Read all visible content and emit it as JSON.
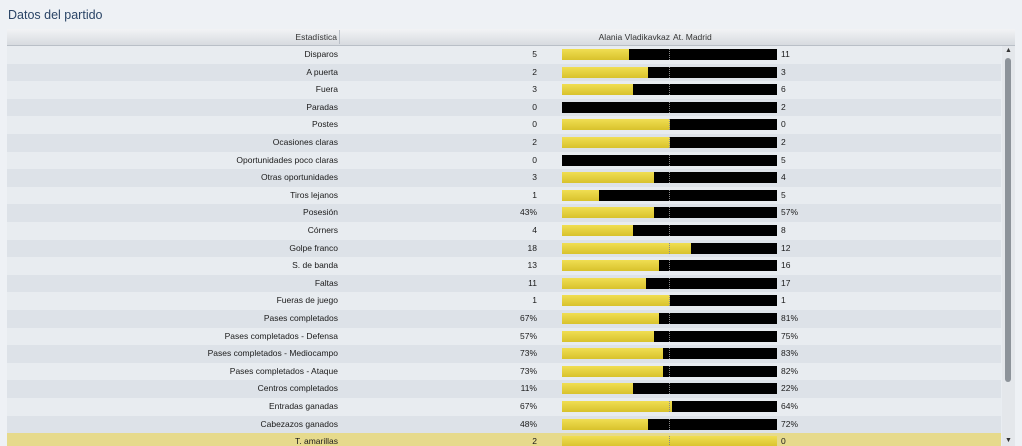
{
  "title": "Datos del partido",
  "header": {
    "stat_col": "Estadística",
    "home_team": "Alania Vladikavkaz",
    "away_team": "At. Madrid"
  },
  "colors": {
    "home_bar": "#e6d23d",
    "away_bar": "#000000",
    "highlight_row": "#e6da8c"
  },
  "stats": [
    {
      "label": "Disparos",
      "home": "5",
      "away": "11",
      "home_share": 0.31
    },
    {
      "label": "A puerta",
      "home": "2",
      "away": "3",
      "home_share": 0.4
    },
    {
      "label": "Fuera",
      "home": "3",
      "away": "6",
      "home_share": 0.33
    },
    {
      "label": "Paradas",
      "home": "0",
      "away": "2",
      "home_share": 0.0
    },
    {
      "label": "Postes",
      "home": "0",
      "away": "0",
      "home_share": 0.5
    },
    {
      "label": "Ocasiones claras",
      "home": "2",
      "away": "2",
      "home_share": 0.5
    },
    {
      "label": "Oportunidades poco claras",
      "home": "0",
      "away": "5",
      "home_share": 0.0
    },
    {
      "label": "Otras oportunidades",
      "home": "3",
      "away": "4",
      "home_share": 0.43
    },
    {
      "label": "Tiros lejanos",
      "home": "1",
      "away": "5",
      "home_share": 0.17
    },
    {
      "label": "Posesión",
      "home": "43%",
      "away": "57%",
      "home_share": 0.43
    },
    {
      "label": "Córners",
      "home": "4",
      "away": "8",
      "home_share": 0.33
    },
    {
      "label": "Golpe franco",
      "home": "18",
      "away": "12",
      "home_share": 0.6
    },
    {
      "label": "S. de banda",
      "home": "13",
      "away": "16",
      "home_share": 0.45
    },
    {
      "label": "Faltas",
      "home": "11",
      "away": "17",
      "home_share": 0.39
    },
    {
      "label": "Fueras de juego",
      "home": "1",
      "away": "1",
      "home_share": 0.5
    },
    {
      "label": "Pases completados",
      "home": "67%",
      "away": "81%",
      "home_share": 0.45
    },
    {
      "label": "Pases completados - Defensa",
      "home": "57%",
      "away": "75%",
      "home_share": 0.43
    },
    {
      "label": "Pases completados - Mediocampo",
      "home": "73%",
      "away": "83%",
      "home_share": 0.47
    },
    {
      "label": "Pases completados - Ataque",
      "home": "73%",
      "away": "82%",
      "home_share": 0.47
    },
    {
      "label": "Centros completados",
      "home": "11%",
      "away": "22%",
      "home_share": 0.33
    },
    {
      "label": "Entradas ganadas",
      "home": "67%",
      "away": "64%",
      "home_share": 0.51
    },
    {
      "label": "Cabezazos ganados",
      "home": "48%",
      "away": "72%",
      "home_share": 0.4
    },
    {
      "label": "T. amarillas",
      "home": "2",
      "away": "0",
      "home_share": 1.0,
      "highlight": true
    }
  ]
}
